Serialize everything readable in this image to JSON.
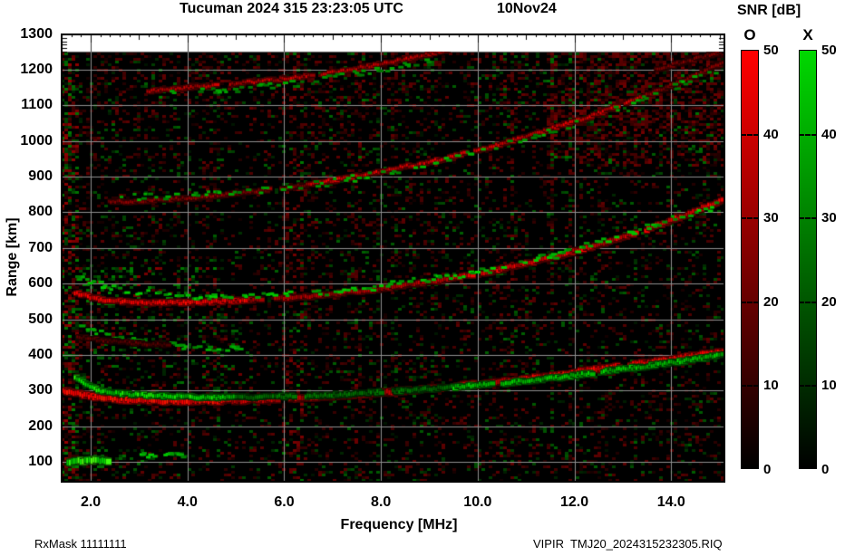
{
  "header": {
    "title": "Tucuman 2024 315 23:23:05 UTC",
    "date": "10Nov24"
  },
  "footer": {
    "left": "RxMask 11111111",
    "right": "VIPIR  TMJ20_2024315232305.RIQ"
  },
  "colorbar": {
    "title": "SNR [dB]",
    "ticks": [
      50,
      40,
      30,
      20,
      10,
      0
    ],
    "bars": [
      {
        "label": "O",
        "color_top": "#ff0000",
        "color_bottom": "#000000"
      },
      {
        "label": "X",
        "color_top": "#00d800",
        "color_bottom": "#000000"
      }
    ]
  },
  "chart_data": {
    "type": "heatmap",
    "title": "Tucuman 2024 315 23:23:05 UTC",
    "xlabel": "Frequency [MHz]",
    "ylabel": "Range [km]",
    "xlim": [
      1.38,
      15.1
    ],
    "ylim": [
      40,
      1307
    ],
    "data_top_km": 1250,
    "x_ticks": [
      2,
      4,
      6,
      8,
      10,
      12,
      14
    ],
    "x_tick_labels": [
      "2.0",
      "4.0",
      "6.0",
      "8.0",
      "10.0",
      "12.0",
      "14.0"
    ],
    "y_ticks": [
      100,
      200,
      300,
      400,
      500,
      600,
      700,
      800,
      900,
      1000,
      1100,
      1200,
      1300
    ],
    "grid": true,
    "grid_color": "#8f8f8f",
    "background": "#000000",
    "snr_scale_db": [
      0,
      50
    ],
    "modes": {
      "O": {
        "color": "#ff0000"
      },
      "X": {
        "color": "#00d800"
      }
    },
    "traces": [
      {
        "id": "F1-O",
        "mode": "O",
        "style": "solid",
        "width": 5,
        "brightness": [
          [
            1.45,
            4.8,
            1.0
          ],
          [
            4.8,
            9.3,
            0.75
          ],
          [
            9.3,
            15.1,
            0.95
          ]
        ],
        "gaps": [
          [
            5.9,
            6.12
          ],
          [
            7.0,
            7.1
          ],
          [
            9.32,
            9.5
          ],
          [
            12.95,
            13.12
          ]
        ],
        "points": [
          [
            1.45,
            300
          ],
          [
            1.7,
            293
          ],
          [
            2.0,
            284
          ],
          [
            2.6,
            274
          ],
          [
            3.5,
            270
          ],
          [
            4.5,
            270
          ],
          [
            5.5,
            273
          ],
          [
            6.5,
            280
          ],
          [
            7.5,
            289
          ],
          [
            8.5,
            300
          ],
          [
            9.5,
            312
          ],
          [
            10.5,
            325
          ],
          [
            11.5,
            341
          ],
          [
            12.5,
            360
          ],
          [
            13.5,
            378
          ],
          [
            14.2,
            392
          ],
          [
            15.1,
            410
          ]
        ]
      },
      {
        "id": "F1-X",
        "mode": "X",
        "style": "solid",
        "width": 4,
        "brightness": [
          [
            1.7,
            5.0,
            0.95
          ],
          [
            5.0,
            9.5,
            0.5
          ],
          [
            9.5,
            15.1,
            0.85
          ]
        ],
        "gaps": [
          [
            6.2,
            6.45
          ],
          [
            8.0,
            8.25
          ],
          [
            10.3,
            10.48
          ],
          [
            12.4,
            12.58
          ]
        ],
        "points": [
          [
            1.7,
            340
          ],
          [
            1.9,
            318
          ],
          [
            2.2,
            300
          ],
          [
            2.7,
            290
          ],
          [
            3.5,
            284
          ],
          [
            4.5,
            281
          ],
          [
            5.5,
            281
          ],
          [
            6.5,
            285
          ],
          [
            7.5,
            292
          ],
          [
            8.5,
            300
          ],
          [
            9.5,
            309
          ],
          [
            10.5,
            320
          ],
          [
            11.5,
            334
          ],
          [
            12.5,
            351
          ],
          [
            13.5,
            369
          ],
          [
            14.2,
            382
          ],
          [
            15.1,
            400
          ]
        ]
      },
      {
        "id": "F2-O",
        "mode": "O",
        "style": "solid",
        "width": 4,
        "brightness": [
          [
            1.7,
            5.3,
            0.9
          ],
          [
            5.3,
            9.5,
            0.65
          ],
          [
            9.5,
            15.1,
            0.85
          ]
        ],
        "gaps": [
          [
            5.55,
            5.8
          ],
          [
            9.9,
            10.1
          ],
          [
            13.3,
            13.46
          ]
        ],
        "points": [
          [
            1.7,
            574
          ],
          [
            2.2,
            556
          ],
          [
            2.8,
            548
          ],
          [
            3.6,
            546
          ],
          [
            4.5,
            549
          ],
          [
            5.5,
            555
          ],
          [
            6.5,
            564
          ],
          [
            7.5,
            577
          ],
          [
            8.5,
            594
          ],
          [
            9.5,
            615
          ],
          [
            10.5,
            641
          ],
          [
            11.5,
            672
          ],
          [
            12.5,
            708
          ],
          [
            13.5,
            752
          ],
          [
            14.3,
            793
          ],
          [
            15.1,
            838
          ]
        ]
      },
      {
        "id": "F2-X",
        "mode": "X",
        "style": "dots",
        "width": 4,
        "density": 0.5,
        "brightness": [
          [
            1.7,
            15.1,
            0.8
          ]
        ],
        "gaps": [],
        "points": [
          [
            1.7,
            620
          ],
          [
            2.3,
            590
          ],
          [
            3.0,
            572
          ],
          [
            4.0,
            564
          ],
          [
            5.0,
            563
          ],
          [
            6.0,
            568
          ],
          [
            7.0,
            578
          ],
          [
            8.0,
            592
          ],
          [
            9.0,
            612
          ],
          [
            10.0,
            632
          ],
          [
            11.0,
            660
          ],
          [
            12.0,
            696
          ],
          [
            13.0,
            738
          ],
          [
            14.0,
            780
          ],
          [
            15.1,
            825
          ]
        ]
      },
      {
        "id": "F3-O",
        "mode": "O",
        "style": "solid",
        "width": 3,
        "brightness": [
          [
            2.4,
            6.5,
            0.5
          ],
          [
            6.5,
            13.5,
            0.8
          ],
          [
            13.5,
            15.1,
            0.5
          ]
        ],
        "gaps": [
          [
            5.7,
            5.92
          ],
          [
            9.75,
            9.92
          ],
          [
            12.9,
            13.05
          ]
        ],
        "points": [
          [
            2.4,
            828
          ],
          [
            3.2,
            833
          ],
          [
            4.2,
            842
          ],
          [
            5.2,
            855
          ],
          [
            6.2,
            872
          ],
          [
            7.2,
            893
          ],
          [
            8.2,
            919
          ],
          [
            9.2,
            947
          ],
          [
            10.2,
            981
          ],
          [
            11.2,
            1020
          ],
          [
            12.2,
            1063
          ],
          [
            13.2,
            1112
          ],
          [
            14.2,
            1166
          ],
          [
            15.1,
            1220
          ]
        ]
      },
      {
        "id": "F3-X",
        "mode": "X",
        "style": "dots",
        "width": 3,
        "density": 0.35,
        "brightness": [
          [
            2.5,
            15.1,
            0.7
          ]
        ],
        "gaps": [],
        "points": [
          [
            2.5,
            840
          ],
          [
            4.0,
            850
          ],
          [
            6.0,
            866
          ],
          [
            8.0,
            908
          ],
          [
            9.0,
            938
          ],
          [
            10.0,
            968
          ],
          [
            11.0,
            1005
          ],
          [
            12.0,
            1048
          ],
          [
            13.0,
            1098
          ],
          [
            14.0,
            1150
          ],
          [
            15.0,
            1205
          ]
        ]
      },
      {
        "id": "F4-O",
        "mode": "O",
        "style": "solid",
        "width": 3,
        "brightness": [
          [
            3.2,
            9.4,
            0.7
          ]
        ],
        "gaps": [
          [
            4.6,
            4.88
          ],
          [
            6.6,
            6.78
          ]
        ],
        "points": [
          [
            3.2,
            1140
          ],
          [
            4.2,
            1152
          ],
          [
            5.2,
            1164
          ],
          [
            6.2,
            1178
          ],
          [
            7.2,
            1196
          ],
          [
            8.0,
            1216
          ],
          [
            8.8,
            1238
          ],
          [
            9.4,
            1258
          ]
        ]
      },
      {
        "id": "F4-X",
        "mode": "X",
        "style": "dots",
        "width": 3,
        "density": 0.3,
        "brightness": [
          [
            3.4,
            9.0,
            0.65
          ]
        ],
        "gaps": [],
        "points": [
          [
            3.4,
            1128
          ],
          [
            4.5,
            1140
          ],
          [
            5.5,
            1152
          ],
          [
            6.5,
            1168
          ],
          [
            7.5,
            1188
          ],
          [
            8.3,
            1206
          ],
          [
            9.0,
            1228
          ]
        ]
      },
      {
        "id": "F5-O",
        "mode": "O",
        "style": "solid",
        "width": 3,
        "brightness": [
          [
            13.7,
            15.1,
            0.45
          ]
        ],
        "gaps": [],
        "points": [
          [
            13.7,
            1202
          ],
          [
            14.3,
            1222
          ],
          [
            15.1,
            1252
          ]
        ]
      },
      {
        "id": "Es-X",
        "mode": "X",
        "style": "solid",
        "width": 6,
        "brightness": [
          [
            1.55,
            2.4,
            1.1
          ]
        ],
        "gaps": [],
        "points": [
          [
            1.55,
            100
          ],
          [
            1.8,
            103
          ],
          [
            2.1,
            104
          ],
          [
            2.4,
            102
          ]
        ]
      },
      {
        "id": "Es-X-dashes",
        "mode": "X",
        "style": "dots",
        "width": 3,
        "density": 0.55,
        "brightness": [
          [
            3.0,
            3.9,
            0.8
          ]
        ],
        "gaps": [],
        "points": [
          [
            3.0,
            122
          ],
          [
            3.5,
            120
          ],
          [
            3.9,
            118
          ]
        ]
      },
      {
        "id": "spread-X",
        "mode": "X",
        "style": "dots",
        "width": 4,
        "density": 0.5,
        "brightness": [
          [
            1.8,
            5.2,
            0.7
          ]
        ],
        "gaps": [],
        "points": [
          [
            1.8,
            480
          ],
          [
            2.2,
            460
          ],
          [
            2.6,
            446
          ],
          [
            3.1,
            436
          ],
          [
            3.7,
            428
          ],
          [
            4.4,
            422
          ],
          [
            5.1,
            418
          ]
        ]
      },
      {
        "id": "spread-O",
        "mode": "O",
        "style": "solid",
        "width": 3,
        "brightness": [
          [
            1.75,
            3.7,
            0.35
          ]
        ],
        "gaps": [],
        "points": [
          [
            1.75,
            452
          ],
          [
            2.3,
            440
          ],
          [
            2.9,
            433
          ],
          [
            3.6,
            428
          ]
        ]
      }
    ],
    "noise": {
      "base_red": 0.13,
      "base_green": 0.075,
      "regions": [
        {
          "f": [
            1.38,
            1.75
          ],
          "r": [
            40,
            1250
          ],
          "red": 0.2,
          "green": 0.16,
          "max": 150
        },
        {
          "f": [
            11.4,
            15.1
          ],
          "r": [
            930,
            1255
          ],
          "red": 0.28,
          "green": 0.02,
          "max": 115
        },
        {
          "f": [
            1.8,
            4.6
          ],
          "r": [
            540,
            650
          ],
          "green": 0.12,
          "max": 140
        },
        {
          "f": [
            1.8,
            3.2
          ],
          "r": [
            85,
            145
          ],
          "green": 0.08,
          "max": 120
        },
        {
          "f": [
            5.9,
            6.35
          ],
          "r": [
            40,
            1250
          ],
          "red": 0.16,
          "max": 125
        },
        {
          "f": [
            7.4,
            7.62
          ],
          "r": [
            40,
            1250
          ],
          "red": 0.11,
          "max": 110
        },
        {
          "f": [
            10.45,
            10.68
          ],
          "r": [
            40,
            1250
          ],
          "red": 0.09,
          "max": 105
        },
        {
          "f": [
            4.28,
            4.45
          ],
          "r": [
            40,
            1250
          ],
          "red": 0.09,
          "max": 100
        },
        {
          "f": [
            1.75,
            5.2
          ],
          "r": [
            300,
            520
          ],
          "green": 0.07,
          "max": 110
        },
        {
          "f": [
            2.0,
            15.1
          ],
          "r": [
            1050,
            1255
          ],
          "red": 0.06,
          "max": 100
        }
      ]
    }
  }
}
